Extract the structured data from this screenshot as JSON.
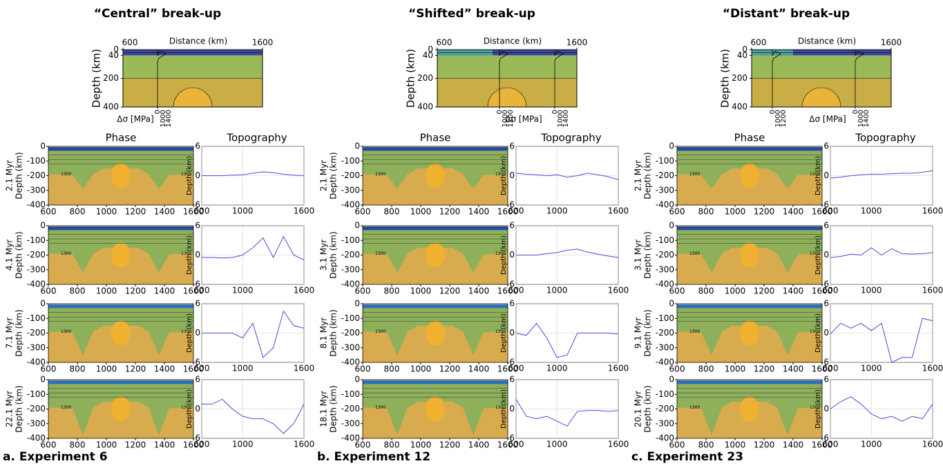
{
  "phase_title": "Phase",
  "topo_title": "Topography",
  "contour_label": "1300",
  "phase_axes": {
    "xlim": [
      600,
      1600
    ],
    "ylim": [
      -400,
      0
    ],
    "xticks": [
      600,
      800,
      1000,
      1200,
      1400,
      1600
    ],
    "yticks": [
      0,
      -100,
      -200,
      -300,
      -400
    ],
    "y_label": "Depth (km)"
  },
  "topo_axes": {
    "xlim": [
      600,
      1600
    ],
    "ylim": [
      -6,
      6
    ],
    "xticks": [
      600,
      1000,
      1600
    ],
    "yticks": [
      -6,
      0,
      6
    ],
    "y_label": "Depth (km)",
    "x": [
      600,
      700,
      800,
      900,
      1000,
      1100,
      1200,
      1300,
      1400,
      1500,
      1600
    ]
  },
  "setup_axes": {
    "x_label": "Distance (km)",
    "xlim": [
      600,
      1600
    ],
    "xticks": [
      600,
      1600
    ],
    "y_label": "Depth (km)",
    "ylim": [
      0,
      400
    ],
    "yticks": [
      0,
      40,
      200,
      400
    ],
    "stress_label": "Δσ [MPa]"
  },
  "columns": [
    {
      "title": "“Central” break-up",
      "label": "a. Experiment 6",
      "stress_ticks": [
        [
          0,
          1000,
          1400
        ]
      ],
      "rows": [
        {
          "time": "2.1 Myr",
          "topo": [
            0,
            0,
            0,
            0.1,
            0.2,
            0.5,
            0.8,
            0.6,
            0.3,
            0.1,
            0
          ]
        },
        {
          "time": "4.1 Myr",
          "topo": [
            -0.5,
            -0.5,
            -0.6,
            -0.5,
            0,
            1.5,
            3.5,
            -0.5,
            3.8,
            0,
            -1
          ]
        },
        {
          "time": "7.1 Myr",
          "topo": [
            0,
            0,
            0,
            0,
            -1,
            2,
            -5,
            -3,
            4.5,
            1.5,
            1
          ]
        },
        {
          "time": "22.1 Myr",
          "topo": [
            1,
            1,
            2,
            0,
            -1.5,
            -2,
            -2,
            -3,
            -5,
            -3,
            1
          ]
        }
      ]
    },
    {
      "title": "“Shifted” break-up",
      "label": "b. Experiment 12",
      "stress_ticks": [
        [
          0,
          1000,
          1200
        ],
        [
          0,
          1000,
          1400
        ]
      ],
      "rows": [
        {
          "time": "2.1 Myr",
          "topo": [
            0.5,
            0.3,
            0.2,
            0,
            0.2,
            -0.3,
            0,
            0.5,
            0.2,
            -0.2,
            -0.8
          ]
        },
        {
          "time": "3.1 Myr",
          "topo": [
            0,
            0,
            0,
            0.3,
            0.5,
            1,
            1.2,
            0.6,
            0.2,
            -0.2,
            -0.5
          ]
        },
        {
          "time": "8.1 Myr",
          "topo": [
            0,
            -0.5,
            2,
            -1,
            -5,
            -4.5,
            0,
            0,
            0,
            0,
            -0.2
          ]
        },
        {
          "time": "18.1 Myr",
          "topo": [
            2,
            -1.5,
            -2,
            -1.5,
            -2.5,
            -3.5,
            -0.5,
            -0.3,
            -0.3,
            -0.5,
            -0.3
          ]
        }
      ]
    },
    {
      "title": "“Distant” break-up",
      "label": "c. Experiment 23",
      "stress_ticks": [
        [
          0,
          1000,
          1200
        ],
        [
          0,
          1000,
          1400
        ]
      ],
      "rows": [
        {
          "time": "2.1 Myr",
          "topo": [
            -0.5,
            -0.3,
            0,
            0.2,
            0.3,
            0.3,
            0.4,
            0.5,
            0.5,
            0.7,
            1
          ]
        },
        {
          "time": "3.1 Myr",
          "topo": [
            -0.5,
            -0.3,
            0.2,
            0,
            1.5,
            0,
            1.3,
            0.3,
            0.2,
            0.3,
            0.5
          ]
        },
        {
          "time": "9.1 Myr",
          "topo": [
            -0.2,
            2,
            1,
            2,
            0.5,
            2,
            -6,
            -5,
            -5,
            3,
            2.5
          ]
        },
        {
          "time": "20.1 Myr",
          "topo": [
            0,
            1.5,
            2.5,
            1,
            -1,
            -2,
            -1.5,
            -2.5,
            -1.5,
            -2,
            1
          ]
        }
      ]
    }
  ]
}
